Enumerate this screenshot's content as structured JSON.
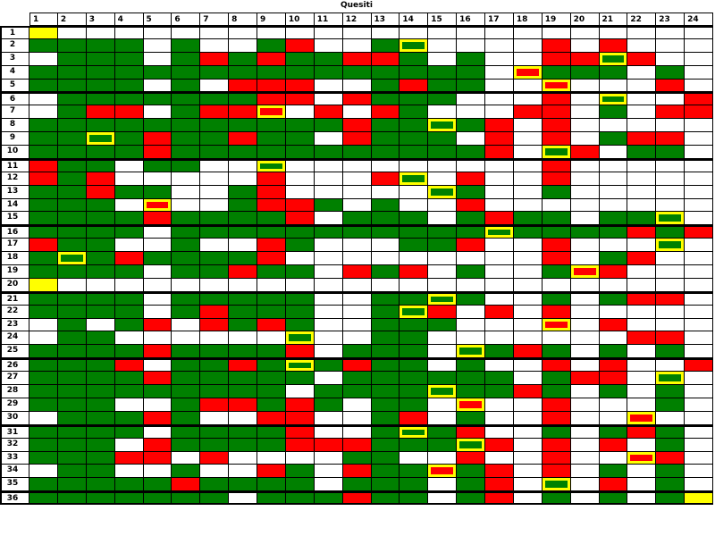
{
  "title": "Quesiti",
  "colors": {
    "correct": "#008000",
    "wrong": "#ff0000",
    "blank": "#ffffff",
    "highlight": "#ffff00",
    "gridline": "#000000"
  },
  "chart_data": {
    "type": "heatmap",
    "title": "Quesiti",
    "columns": [
      "1",
      "2",
      "3",
      "4",
      "5",
      "6",
      "7",
      "8",
      "9",
      "10",
      "11",
      "12",
      "13",
      "14",
      "15",
      "16",
      "17",
      "18",
      "19",
      "20",
      "21",
      "22",
      "23",
      "24"
    ],
    "rows": [
      "1",
      "2",
      "3",
      "4",
      "5",
      "6",
      "7",
      "8",
      "9",
      "10",
      "11",
      "12",
      "13",
      "14",
      "15",
      "16",
      "17",
      "18",
      "19",
      "20",
      "21",
      "22",
      "23",
      "24",
      "25",
      "26",
      "27",
      "28",
      "29",
      "30",
      "31",
      "32",
      "33",
      "34",
      "35",
      "36"
    ],
    "legend": {
      "g": {
        "meaning": "green cell",
        "color": "#008000"
      },
      "r": {
        "meaning": "red cell",
        "color": "#ff0000"
      },
      "w": {
        "meaning": "white (empty) cell",
        "color": "#ffffff"
      },
      "Y": {
        "meaning": "yellow-filled empty cell",
        "color": "#ffff00"
      },
      "G": {
        "meaning": "green cell with yellow highlight border",
        "color": "#008000 + #ffff00 border"
      },
      "R": {
        "meaning": "red cell with yellow highlight border",
        "color": "#ff0000 + #ffff00 border"
      }
    },
    "group_separator_before_rows": [
      6,
      11,
      16,
      21,
      26,
      31,
      36
    ],
    "matrix": [
      "Ywwwwwwwwwwwwwwwwwwwwwww",
      "ggggwgwwgrwwgGwwwwrwrwww",
      "wgggwgrgrggrrgwgwwrrGrww",
      "ggggggggggggggggwRgggwgw",
      "ggggwgwrrrwwgrggwwRwwwrw",
      "wgggggggrrwrgggwwwrwGwwr",
      "wgrrwgrrRwrwrgwwwrrwgwrr",
      "gggggggggggrggGgrwrwwwww",
      "ggGgrggrggwrgggwrwrwgrrw",
      "ggggrgggggggggggrwGrwggw",
      "rggwggwwGwwwwwwwwwrwwwww",
      "rgrwwwwwrwwwrGwrwwrwwwww",
      "ggrggwwgrwwwwwGgwwgwwwww",
      "gggwRwwgrrgwgwwrwwwwwwww",
      "ggggrggggrwgggwgrggwggGw",
      "ggggwgggggggggggGggggrgr",
      "rggwwgwwrgwwwggrwwrwwwGw",
      "gGgrggggrwwwwwwwwwrwgrww",
      "ggggwggrggwrgrwgwwgRrwww",
      "Ywwwwwwwwwwwwwwwwwwwwwww",
      "ggggwgggggwwggGgwwgwgrrw",
      "ggggwgrgggwwgGrwrwrwwwww",
      "wgwgrwrgrgwwgggwwwRwrwww",
      "wggwwwwwwGwwggwwwwwwwrrw",
      "ggggrggggrwgggwGgrgwgwgw",
      "gggrwggrgGgrggwgwwrwrwwr",
      "ggggrgggggwggggggwgrrwGw",
      "gggggggggwggggGggrgwgwgw",
      "gggwwgrrgrgwggwRwwrwwwgw",
      "wgggrgwwrrwwgrwgwwrwwRww",
      "ggggwggggrwwgGgrwwgwgrgw",
      "gggwrggggrrrgggGrwrwrwgw",
      "gggrrwrwwwwggwwrwwrwwRrw",
      "wggwwgwwrgwrggRgrwrwgwgw",
      "gggggrggggwgggwgrwGwrwgw",
      "gggggggwgggrggwgrwgwgwgY"
    ]
  }
}
